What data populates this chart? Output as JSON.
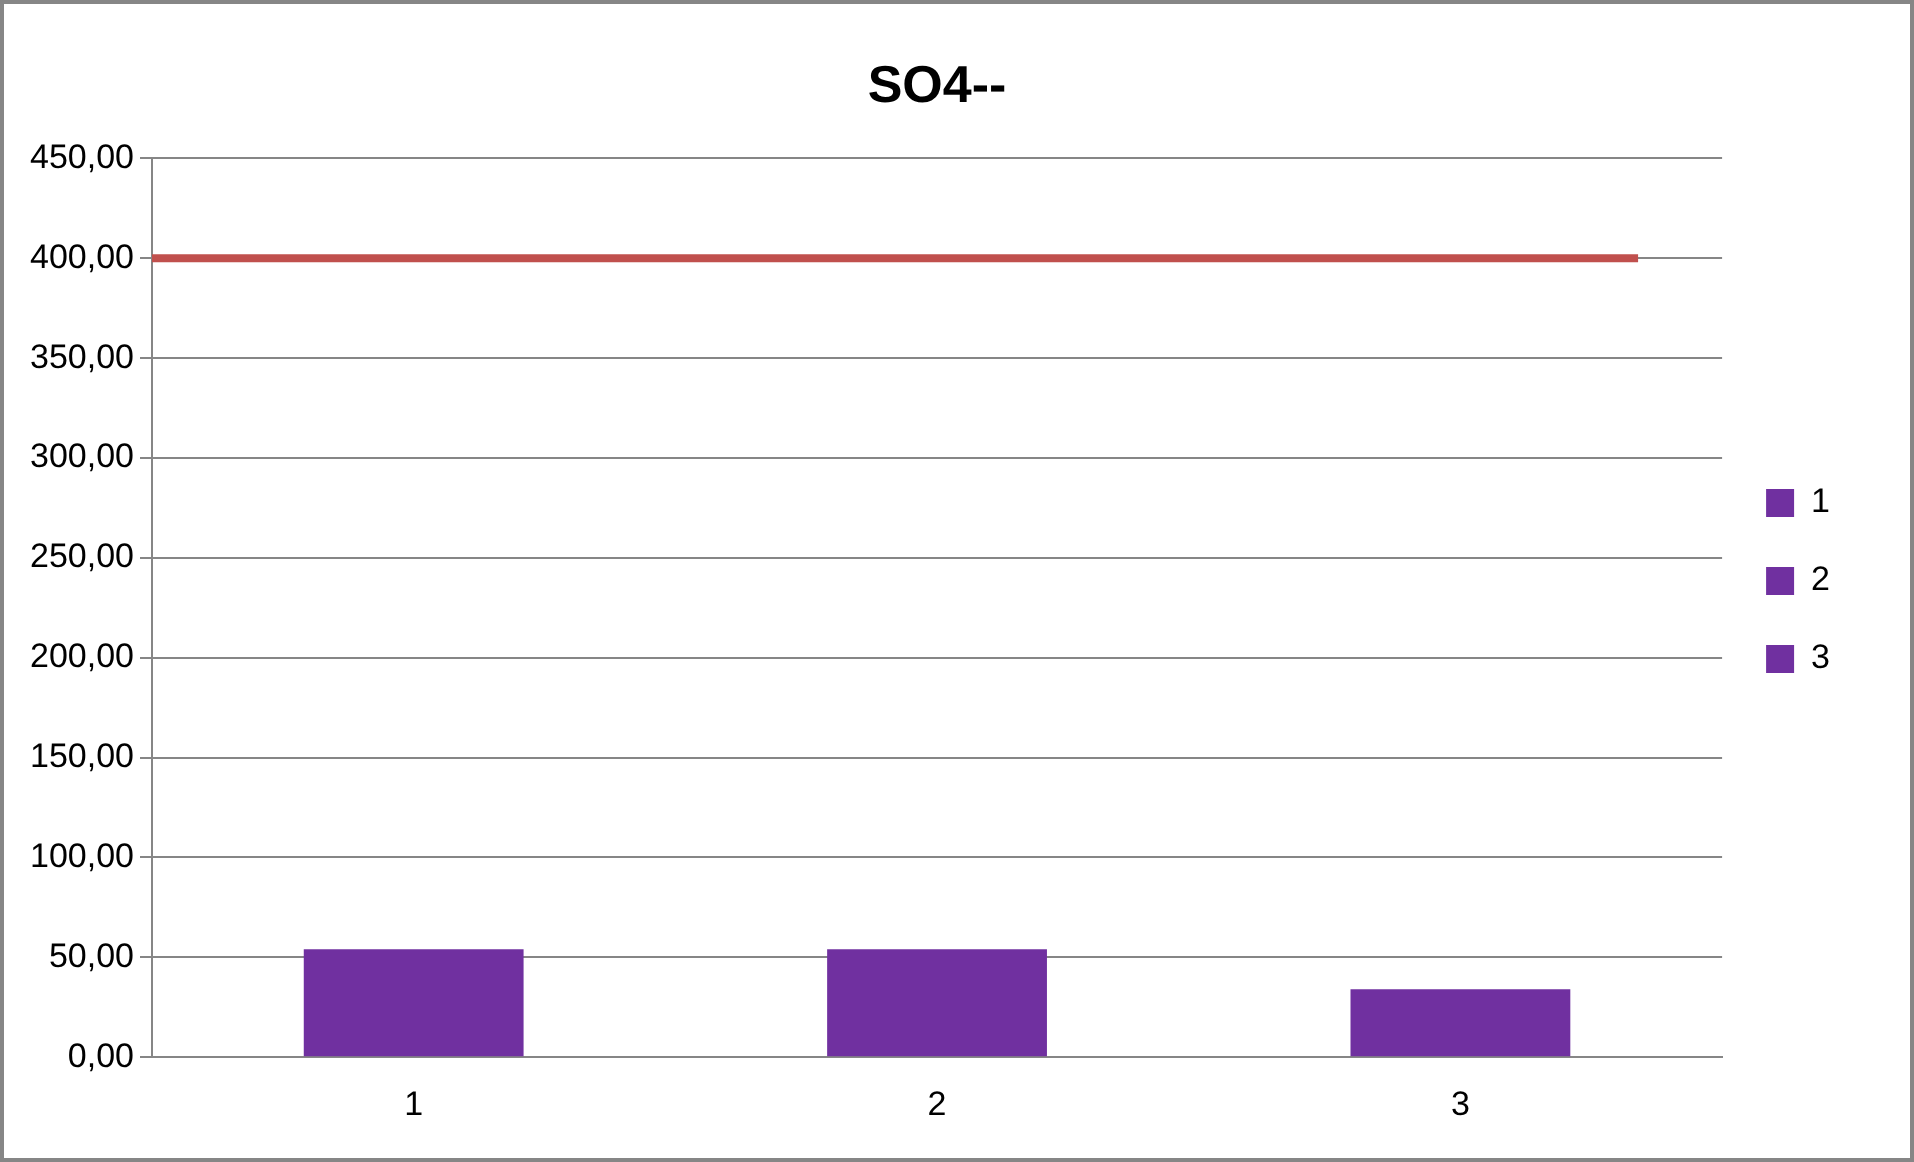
{
  "chart_data": {
    "type": "bar",
    "title": "SO4--",
    "categories": [
      "1",
      "2",
      "3"
    ],
    "series": [
      {
        "name": "1",
        "color": "#7030a0",
        "values": [
          54,
          null,
          null
        ]
      },
      {
        "name": "2",
        "color": "#7030a0",
        "values": [
          null,
          54,
          null
        ]
      },
      {
        "name": "3",
        "color": "#7030a0",
        "values": [
          null,
          null,
          34
        ]
      }
    ],
    "ylim": [
      0,
      450
    ],
    "yticks": [
      {
        "value": 0,
        "label": "0,00"
      },
      {
        "value": 50,
        "label": "50,00"
      },
      {
        "value": 100,
        "label": "100,00"
      },
      {
        "value": 150,
        "label": "150,00"
      },
      {
        "value": 200,
        "label": "200,00"
      },
      {
        "value": 250,
        "label": "250,00"
      },
      {
        "value": 300,
        "label": "300,00"
      },
      {
        "value": 350,
        "label": "350,00"
      },
      {
        "value": 400,
        "label": "400,00"
      },
      {
        "value": 450,
        "label": "450,00"
      }
    ],
    "grid": "y",
    "legend": "right",
    "ref_lines": [
      {
        "axis": "y",
        "value": 400,
        "color": "#c0504d"
      }
    ]
  }
}
